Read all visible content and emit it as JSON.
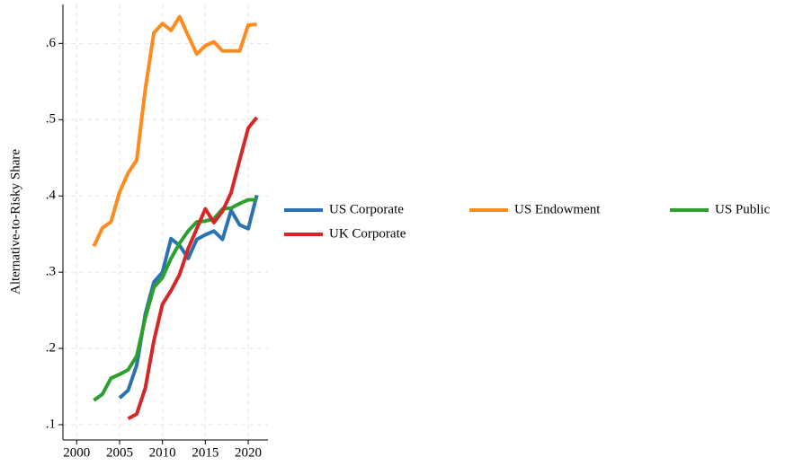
{
  "chart_data": {
    "type": "line",
    "y_label": "Alternative-to-Risky Share",
    "x": [
      2002,
      2003,
      2004,
      2005,
      2006,
      2007,
      2008,
      2009,
      2010,
      2011,
      2012,
      2013,
      2014,
      2015,
      2016,
      2017,
      2018,
      2019,
      2020,
      2021
    ],
    "series": [
      {
        "name": "US Corporate",
        "color": "#2a72b0",
        "values": [
          null,
          null,
          null,
          0.135,
          0.145,
          0.178,
          0.245,
          0.287,
          0.3,
          0.344,
          0.335,
          0.318,
          0.343,
          0.349,
          0.354,
          0.343,
          0.381,
          0.362,
          0.357,
          0.401
        ]
      },
      {
        "name": "US Endowment",
        "color": "#ff8b1f",
        "values": [
          0.334,
          0.358,
          0.366,
          0.405,
          0.43,
          0.447,
          0.54,
          0.614,
          0.626,
          0.617,
          0.635,
          0.61,
          0.586,
          0.597,
          0.602,
          0.59,
          0.59,
          0.59,
          0.624,
          0.625
        ]
      },
      {
        "name": "US Public",
        "color": "#2ca02c",
        "values": [
          0.132,
          0.14,
          0.161,
          0.166,
          0.172,
          0.19,
          0.24,
          0.28,
          0.293,
          0.318,
          0.338,
          0.354,
          0.366,
          0.367,
          0.37,
          0.383,
          0.384,
          0.39,
          0.395,
          0.395
        ]
      },
      {
        "name": "UK Corporate",
        "color": "#d62728",
        "values": [
          null,
          null,
          null,
          null,
          0.108,
          0.114,
          0.148,
          0.21,
          0.258,
          0.276,
          0.297,
          0.331,
          0.357,
          0.383,
          0.365,
          0.38,
          0.404,
          0.447,
          0.489,
          0.503
        ]
      }
    ],
    "xlim": [
      1998.4,
      2022.3
    ],
    "xticks": [
      2000,
      2005,
      2010,
      2015,
      2020
    ],
    "ylim": [
      0.08,
      0.651
    ],
    "yticks": [
      {
        "value": 0.1,
        "label": ".1"
      },
      {
        "value": 0.2,
        "label": ".2"
      },
      {
        "value": 0.3,
        "label": ".3"
      },
      {
        "value": 0.4,
        "label": ".4"
      },
      {
        "value": 0.5,
        "label": ".5"
      },
      {
        "value": 0.6,
        "label": ".6"
      }
    ],
    "grid": true,
    "legend": "right"
  }
}
